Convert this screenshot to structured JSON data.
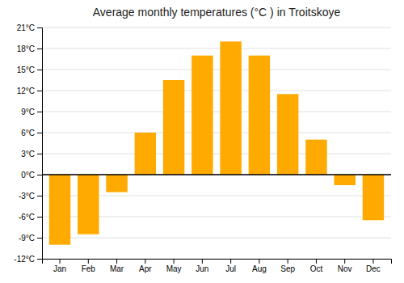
{
  "chart_data": {
    "type": "bar",
    "title": "Average monthly temperatures (°C ) in Troitskoye",
    "categories": [
      "Jan",
      "Feb",
      "Mar",
      "Apr",
      "May",
      "Jun",
      "Jul",
      "Aug",
      "Sep",
      "Oct",
      "Nov",
      "Dec"
    ],
    "values": [
      -10,
      -8.5,
      -2.5,
      6,
      13.5,
      17,
      19,
      17,
      11.5,
      5,
      -1.5,
      -6.5
    ],
    "color": "#FFAA00",
    "ylim": [
      -12,
      21
    ],
    "yticks": [
      {
        "value": -12,
        "label": "-12°C"
      },
      {
        "value": -9,
        "label": "-9°C"
      },
      {
        "value": -6,
        "label": "-6°C"
      },
      {
        "value": -3,
        "label": "-3°C"
      },
      {
        "value": 0,
        "label": "0°C"
      },
      {
        "value": 3,
        "label": "3°C"
      },
      {
        "value": 6,
        "label": "6°C"
      },
      {
        "value": 9,
        "label": "9°C"
      },
      {
        "value": 12,
        "label": "12°C"
      },
      {
        "value": 15,
        "label": "15°C"
      },
      {
        "value": 18,
        "label": "18°C"
      },
      {
        "value": 21,
        "label": "21°C"
      }
    ],
    "grid": true
  }
}
